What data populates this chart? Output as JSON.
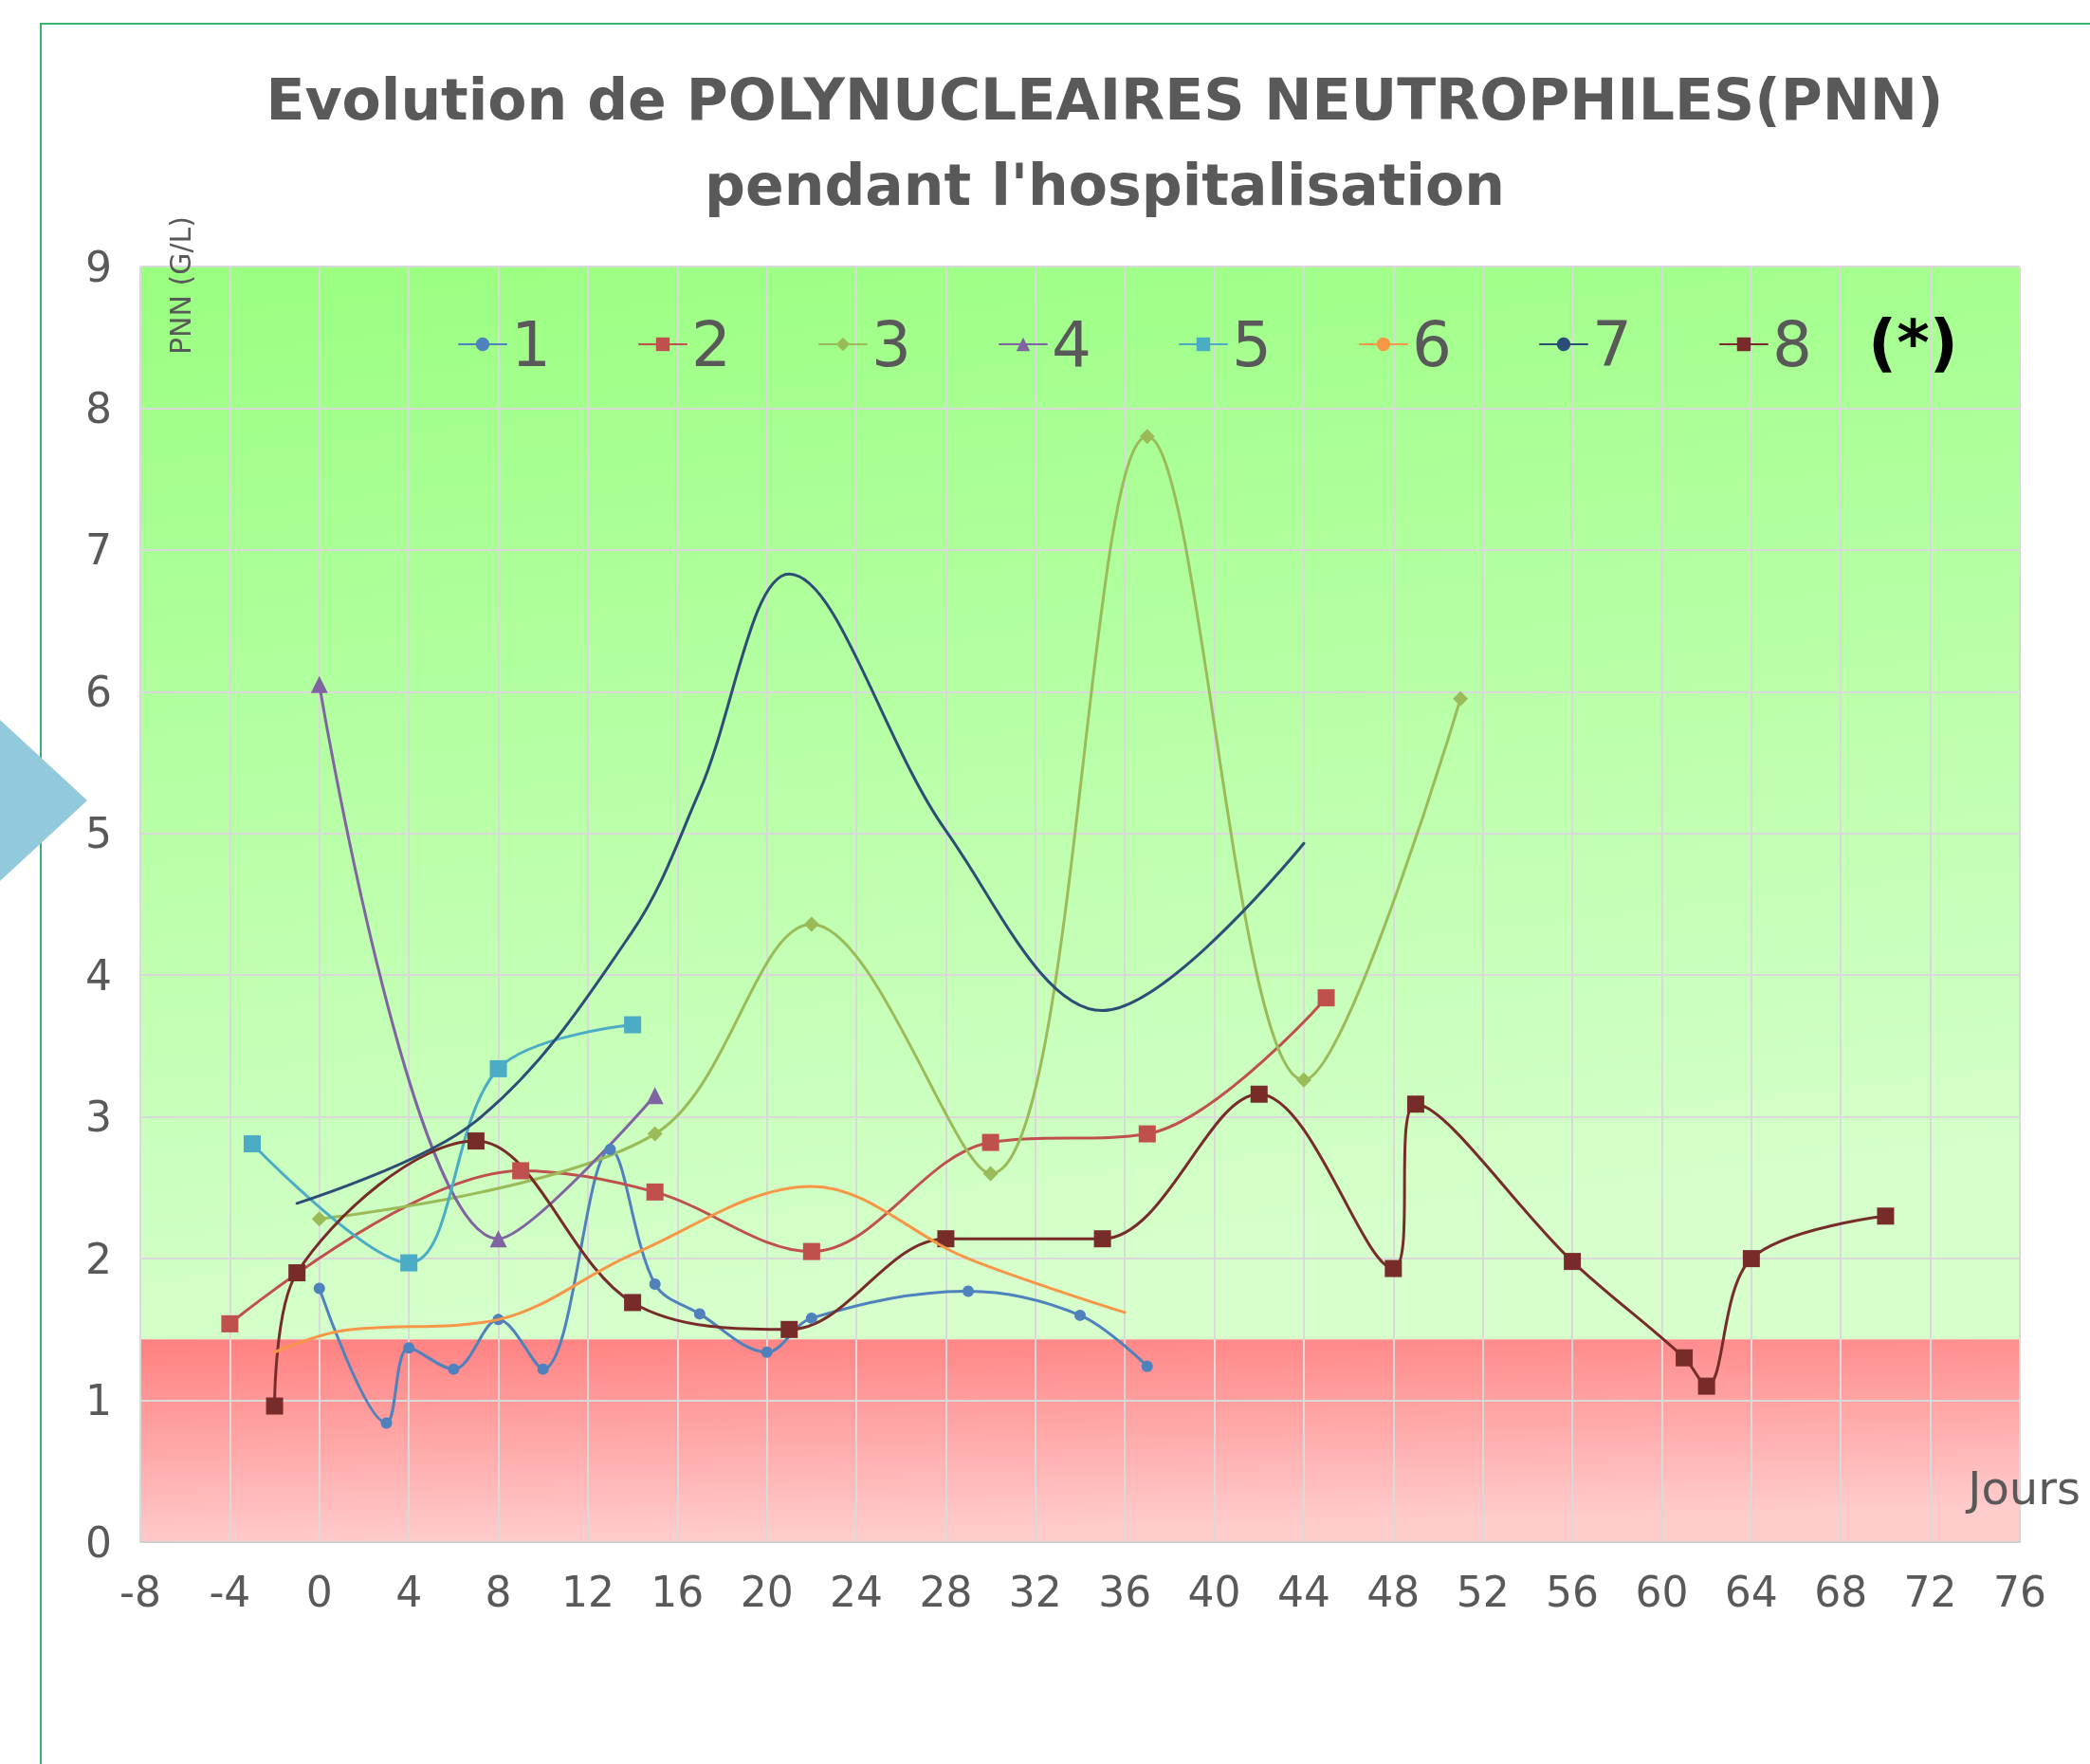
{
  "chart_data": {
    "type": "line",
    "title": "Evolution de POLYNUCLEAIRES NEUTROPHILES(PNN)\npendant l'hospitalisation",
    "xlabel": "Jours",
    "ylabel": "PNN (G/L)",
    "annotations": [
      "(*)"
    ],
    "xlim": [
      -8,
      76
    ],
    "xticks": [
      -8,
      -4,
      0,
      4,
      8,
      12,
      16,
      20,
      24,
      28,
      32,
      36,
      40,
      44,
      48,
      52,
      56,
      60,
      64,
      68,
      72,
      76
    ],
    "ylim": [
      0,
      9
    ],
    "yticks": [
      0,
      1,
      2,
      3,
      4,
      5,
      6,
      7,
      8,
      9
    ],
    "grid": true,
    "legend": "top",
    "bands": [
      {
        "axis": "y",
        "from": 0,
        "to": 1.43,
        "color": "#ff8080"
      },
      {
        "axis": "y",
        "from": 1.43,
        "to": 9,
        "color": "#99ff80"
      }
    ],
    "series": [
      {
        "name": "1",
        "color": "#4f81bd",
        "marker": "circle",
        "x": [
          0,
          3,
          4,
          6,
          8,
          10,
          13,
          15,
          17,
          20,
          22,
          29,
          34,
          37
        ],
        "values": [
          1.79,
          0.84,
          1.37,
          1.22,
          1.57,
          1.22,
          2.77,
          1.82,
          1.61,
          1.34,
          1.58,
          1.77,
          1.6,
          1.24
        ]
      },
      {
        "name": "2",
        "color": "#c0504d",
        "marker": "square",
        "x": [
          -4,
          9,
          15,
          22,
          30,
          37,
          45
        ],
        "values": [
          1.54,
          2.62,
          2.47,
          2.05,
          2.82,
          2.88,
          3.84
        ]
      },
      {
        "name": "3",
        "color": "#9bbb59",
        "marker": "diamond",
        "x": [
          0,
          15,
          22,
          30,
          37,
          44,
          51
        ],
        "values": [
          2.28,
          2.88,
          4.36,
          2.6,
          7.8,
          3.26,
          5.95
        ]
      },
      {
        "name": "4",
        "color": "#8064a2",
        "marker": "triangle",
        "x": [
          0,
          8,
          15
        ],
        "values": [
          6.05,
          2.14,
          3.15
        ]
      },
      {
        "name": "5",
        "color": "#4bacc6",
        "marker": "square",
        "x": [
          -3,
          4,
          8,
          14
        ],
        "values": [
          2.81,
          1.97,
          3.34,
          3.65
        ]
      },
      {
        "name": "6",
        "color": "#f79646",
        "marker": "none",
        "x": [
          -2,
          1,
          8,
          14,
          22,
          29,
          36
        ],
        "values": [
          1.34,
          1.49,
          1.57,
          2.03,
          2.51,
          2.0,
          1.62
        ]
      },
      {
        "name": "7",
        "color": "#2c4d75",
        "marker": "none",
        "x": [
          -1,
          7,
          14,
          17,
          21,
          28,
          35,
          44
        ],
        "values": [
          2.39,
          2.97,
          4.31,
          5.3,
          6.83,
          5.02,
          3.75,
          4.93
        ]
      },
      {
        "name": "8",
        "color": "#772c2a",
        "marker": "square",
        "x": [
          -2,
          -1,
          7,
          14,
          21,
          28,
          35,
          42,
          48,
          49,
          56,
          61,
          62,
          64,
          70
        ],
        "values": [
          0.96,
          1.9,
          2.83,
          1.69,
          1.5,
          2.14,
          2.14,
          3.16,
          1.93,
          3.09,
          1.98,
          1.3,
          1.1,
          2.0,
          2.3
        ]
      }
    ]
  }
}
